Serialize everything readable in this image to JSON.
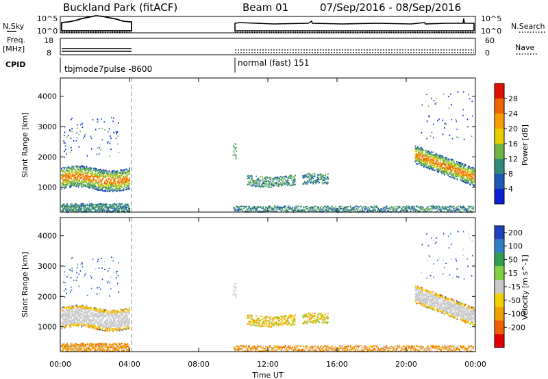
{
  "header": {
    "site": "Buckland Park (fitACF)",
    "beam": "Beam 01",
    "date_range": "07/Sep/2016 - 08/Sep/2016"
  },
  "status_panels": {
    "nsky_label": "N.Sky",
    "nsearch_label": "N.Search",
    "noise_ticks": [
      "10^5",
      "10^0"
    ],
    "freq_label_1": "Freq.",
    "freq_label_2": "[MHz]",
    "freq_ticks": [
      "18",
      "8"
    ],
    "nave_label": "Nave",
    "nave_ticks": [
      "60",
      "0"
    ],
    "cpid_label": "CPID",
    "modes": [
      {
        "name": "tbjmode7pulse -8600",
        "start_hour": 0.0,
        "end_hour": 4.0
      },
      {
        "name": "normal (fast) 151",
        "start_hour": 10.0,
        "end_hour": 24.0
      }
    ]
  },
  "chart_data": [
    {
      "type": "heatmap",
      "xlabel": "Time UT",
      "ylabel": "Slant Range [km]",
      "colorbar_label": "Power [dB]",
      "x_ticks": [
        "00:00",
        "04:00",
        "08:00",
        "12:00",
        "16:00",
        "20:00",
        "00:00"
      ],
      "x_range_hours": [
        0,
        24
      ],
      "y_ticks": [
        1000,
        2000,
        3000,
        4000
      ],
      "ylim": [
        180,
        4600
      ],
      "colorbar_ticks": [
        4,
        8,
        12,
        16,
        20,
        24,
        28
      ],
      "colorbar_range": [
        0,
        32
      ],
      "colors": [
        "#0a1fd8",
        "#1f58b8",
        "#2f8a7a",
        "#6fb640",
        "#e8d000",
        "#f5a000",
        "#f06400",
        "#e01000"
      ],
      "data_gaps_hours": [
        [
          4.0,
          10.0
        ]
      ]
    },
    {
      "type": "heatmap",
      "xlabel": "Time UT",
      "ylabel": "Slant Range [km]",
      "colorbar_label": "Velocity [m s^-1]",
      "x_ticks": [
        "00:00",
        "04:00",
        "08:00",
        "12:00",
        "16:00",
        "20:00",
        "00:00"
      ],
      "x_range_hours": [
        0,
        24
      ],
      "y_ticks": [
        1000,
        2000,
        3000,
        4000
      ],
      "ylim": [
        180,
        4600
      ],
      "colorbar_ticks": [
        200,
        100,
        50,
        15,
        -15,
        -50,
        -100,
        -200
      ],
      "colors": [
        "#2040c0",
        "#3080c8",
        "#30a050",
        "#80d040",
        "#c8c8c8",
        "#f0d000",
        "#f0a000",
        "#f06000",
        "#e00000"
      ],
      "data_gaps_hours": [
        [
          4.0,
          10.0
        ]
      ]
    }
  ]
}
